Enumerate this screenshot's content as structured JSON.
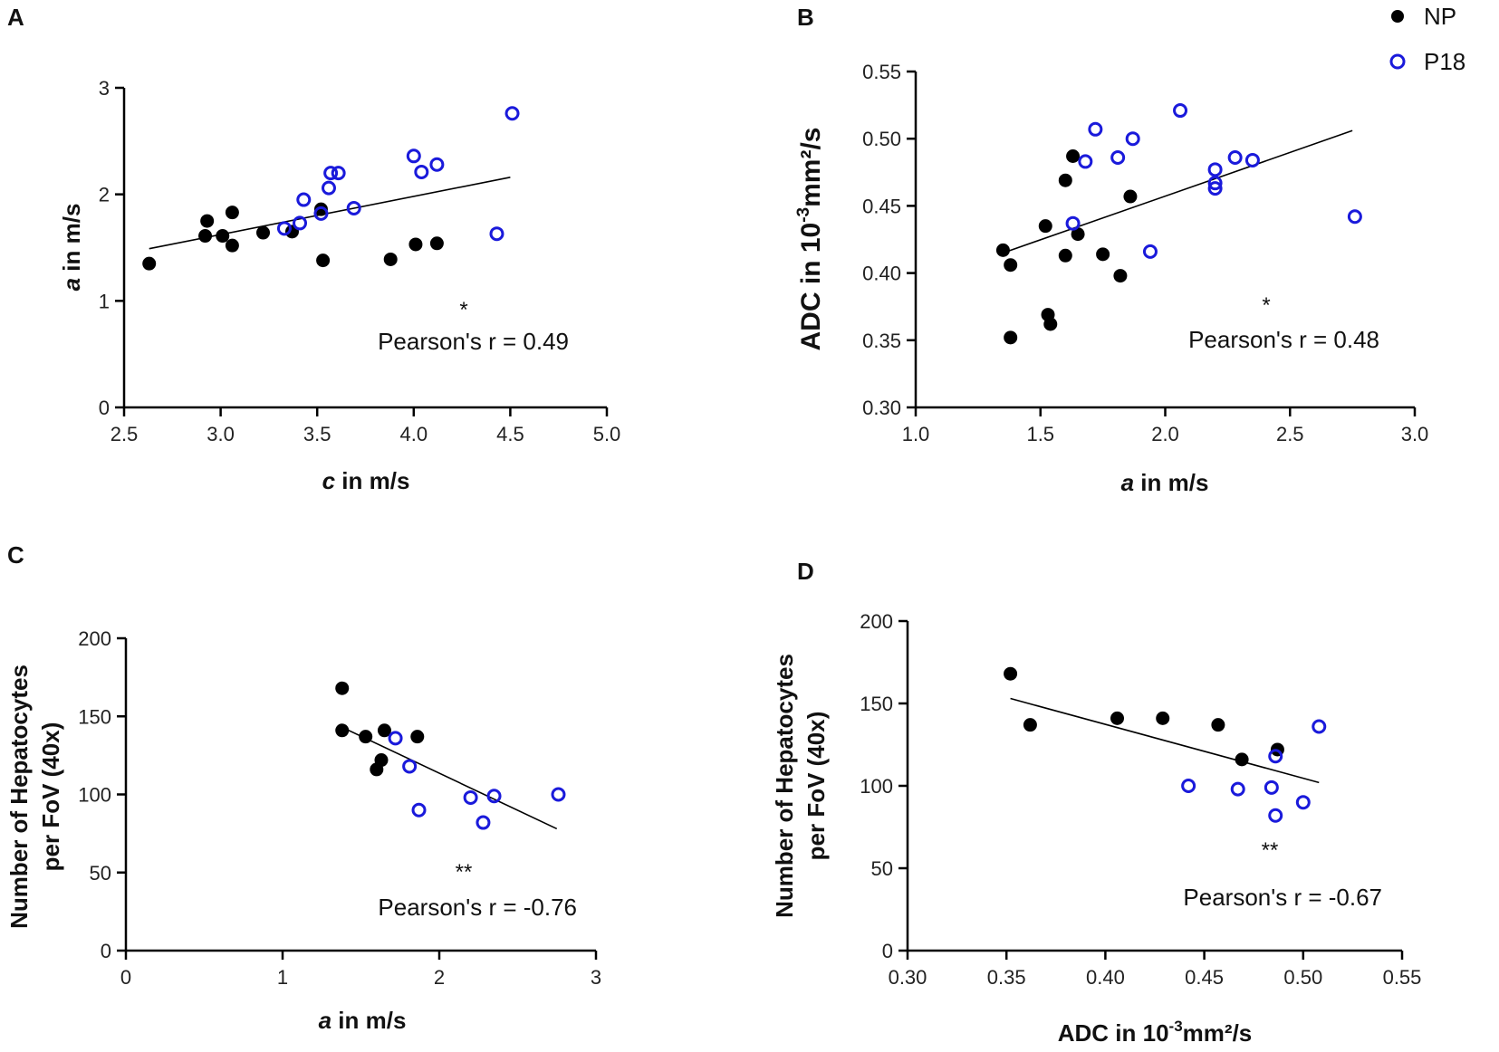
{
  "colors": {
    "np": "#000000",
    "p18": "#1a1adb",
    "axis": "#000000"
  },
  "legend": [
    {
      "name": "NP",
      "style": "filled"
    },
    {
      "name": "P18",
      "style": "open"
    }
  ],
  "chart_data": [
    {
      "panel": "A",
      "type": "scatter",
      "xlabel": "c in m/s",
      "xlabel_var": "c",
      "xlabel_rest": " in m/s",
      "ylabel": "a in m/s",
      "ylabel_var": "a",
      "ylabel_rest": " in m/s",
      "xlim": [
        2.5,
        5.0
      ],
      "ylim": [
        0,
        3
      ],
      "xticks": [
        2.5,
        3.0,
        3.5,
        4.0,
        4.5,
        5.0
      ],
      "xtick_labels": [
        "2.5",
        "3.0",
        "3.5",
        "4.0",
        "4.5",
        "5.0"
      ],
      "yticks": [
        0,
        1,
        2,
        3
      ],
      "ytick_labels": [
        "0",
        "1",
        "2",
        "3"
      ],
      "series": [
        {
          "name": "NP",
          "points": [
            [
              2.63,
              1.35
            ],
            [
              2.92,
              1.61
            ],
            [
              2.93,
              1.75
            ],
            [
              3.01,
              1.61
            ],
            [
              3.06,
              1.83
            ],
            [
              3.06,
              1.52
            ],
            [
              3.22,
              1.64
            ],
            [
              3.37,
              1.65
            ],
            [
              3.52,
              1.86
            ],
            [
              3.53,
              1.38
            ],
            [
              3.88,
              1.39
            ],
            [
              4.01,
              1.53
            ],
            [
              4.12,
              1.54
            ]
          ]
        },
        {
          "name": "P18",
          "points": [
            [
              3.33,
              1.68
            ],
            [
              3.41,
              1.73
            ],
            [
              3.43,
              1.95
            ],
            [
              3.52,
              1.82
            ],
            [
              3.56,
              2.06
            ],
            [
              3.57,
              2.2
            ],
            [
              3.61,
              2.2
            ],
            [
              3.69,
              1.87
            ],
            [
              4.0,
              2.36
            ],
            [
              4.04,
              2.21
            ],
            [
              4.12,
              2.28
            ],
            [
              4.43,
              1.63
            ],
            [
              4.51,
              2.76
            ]
          ]
        }
      ],
      "fit": [
        [
          2.63,
          1.49
        ],
        [
          4.5,
          2.16
        ]
      ],
      "significance": "*",
      "annotation": "Pearson's r = 0.49"
    },
    {
      "panel": "B",
      "type": "scatter",
      "xlabel": "a in m/s",
      "xlabel_var": "a",
      "xlabel_rest": " in m/s",
      "ylabel": "ADC in 10-3mm²/s",
      "ylabel_main": "ADC in 10",
      "ylabel_sup": "-3",
      "ylabel_tail": "mm²/s",
      "xlim": [
        1.0,
        3.0
      ],
      "ylim": [
        0.3,
        0.55
      ],
      "xticks": [
        1.0,
        1.5,
        2.0,
        2.5,
        3.0
      ],
      "xtick_labels": [
        "1.0",
        "1.5",
        "2.0",
        "2.5",
        "3.0"
      ],
      "yticks": [
        0.3,
        0.35,
        0.4,
        0.45,
        0.5,
        0.55
      ],
      "ytick_labels": [
        "0.30",
        "0.35",
        "0.40",
        "0.45",
        "0.50",
        "0.55"
      ],
      "series": [
        {
          "name": "NP",
          "points": [
            [
              1.35,
              0.417
            ],
            [
              1.38,
              0.406
            ],
            [
              1.38,
              0.352
            ],
            [
              1.52,
              0.435
            ],
            [
              1.53,
              0.369
            ],
            [
              1.54,
              0.362
            ],
            [
              1.6,
              0.469
            ],
            [
              1.6,
              0.413
            ],
            [
              1.63,
              0.487
            ],
            [
              1.65,
              0.429
            ],
            [
              1.75,
              0.414
            ],
            [
              1.82,
              0.398
            ],
            [
              1.86,
              0.457
            ]
          ]
        },
        {
          "name": "P18",
          "points": [
            [
              1.63,
              0.437
            ],
            [
              1.68,
              0.483
            ],
            [
              1.72,
              0.507
            ],
            [
              1.81,
              0.486
            ],
            [
              1.87,
              0.5
            ],
            [
              1.94,
              0.416
            ],
            [
              2.06,
              0.521
            ],
            [
              2.2,
              0.463
            ],
            [
              2.2,
              0.467
            ],
            [
              2.2,
              0.477
            ],
            [
              2.28,
              0.486
            ],
            [
              2.35,
              0.484
            ],
            [
              2.76,
              0.442
            ]
          ]
        }
      ],
      "fit": [
        [
          1.35,
          0.415
        ],
        [
          2.75,
          0.506
        ]
      ],
      "significance": "*",
      "annotation": "Pearson's r = 0.48"
    },
    {
      "panel": "C",
      "type": "scatter",
      "xlabel": "a in m/s",
      "xlabel_var": "a",
      "xlabel_rest": " in m/s",
      "ylabel_line1": "Number of Hepatocytes",
      "ylabel_line2": "per FoV (40x)",
      "xlim": [
        0,
        3
      ],
      "ylim": [
        0,
        200
      ],
      "xticks": [
        0,
        1,
        2,
        3
      ],
      "xtick_labels": [
        "0",
        "1",
        "2",
        "3"
      ],
      "yticks": [
        0,
        50,
        100,
        150,
        200
      ],
      "ytick_labels": [
        "0",
        "50",
        "100",
        "150",
        "200"
      ],
      "series": [
        {
          "name": "NP",
          "points": [
            [
              1.38,
              168
            ],
            [
              1.38,
              141
            ],
            [
              1.53,
              137
            ],
            [
              1.6,
              116
            ],
            [
              1.63,
              122
            ],
            [
              1.65,
              141
            ],
            [
              1.86,
              137
            ]
          ]
        },
        {
          "name": "P18",
          "points": [
            [
              1.72,
              136
            ],
            [
              1.81,
              118
            ],
            [
              1.87,
              90
            ],
            [
              2.2,
              98
            ],
            [
              2.28,
              82
            ],
            [
              2.35,
              99
            ],
            [
              2.76,
              100
            ]
          ]
        }
      ],
      "fit": [
        [
          1.38,
          143
        ],
        [
          2.75,
          78
        ]
      ],
      "significance": "**",
      "annotation": "Pearson's r = -0.76"
    },
    {
      "panel": "D",
      "type": "scatter",
      "xlabel": "ADC in 10-3mm²/s",
      "xlabel_main": "ADC in 10",
      "xlabel_sup": "-3",
      "xlabel_tail": "mm²/s",
      "ylabel_line1": "Number of Hepatocytes",
      "ylabel_line2": "per FoV (40x)",
      "xlim": [
        0.3,
        0.55
      ],
      "ylim": [
        0,
        200
      ],
      "xticks": [
        0.3,
        0.35,
        0.4,
        0.45,
        0.5,
        0.55
      ],
      "xtick_labels": [
        "0.30",
        "0.35",
        "0.40",
        "0.45",
        "0.50",
        "0.55"
      ],
      "yticks": [
        0,
        50,
        100,
        150,
        200
      ],
      "ytick_labels": [
        "0",
        "50",
        "100",
        "150",
        "200"
      ],
      "series": [
        {
          "name": "NP",
          "points": [
            [
              0.352,
              168
            ],
            [
              0.362,
              137
            ],
            [
              0.406,
              141
            ],
            [
              0.429,
              141
            ],
            [
              0.457,
              137
            ],
            [
              0.469,
              116
            ],
            [
              0.487,
              122
            ]
          ]
        },
        {
          "name": "P18",
          "points": [
            [
              0.442,
              100
            ],
            [
              0.467,
              98
            ],
            [
              0.484,
              99
            ],
            [
              0.486,
              118
            ],
            [
              0.486,
              82
            ],
            [
              0.5,
              90
            ],
            [
              0.508,
              136
            ]
          ]
        }
      ],
      "fit": [
        [
          0.352,
          153
        ],
        [
          0.508,
          102
        ]
      ],
      "significance": "**",
      "annotation": "Pearson's r = -0.67"
    }
  ]
}
